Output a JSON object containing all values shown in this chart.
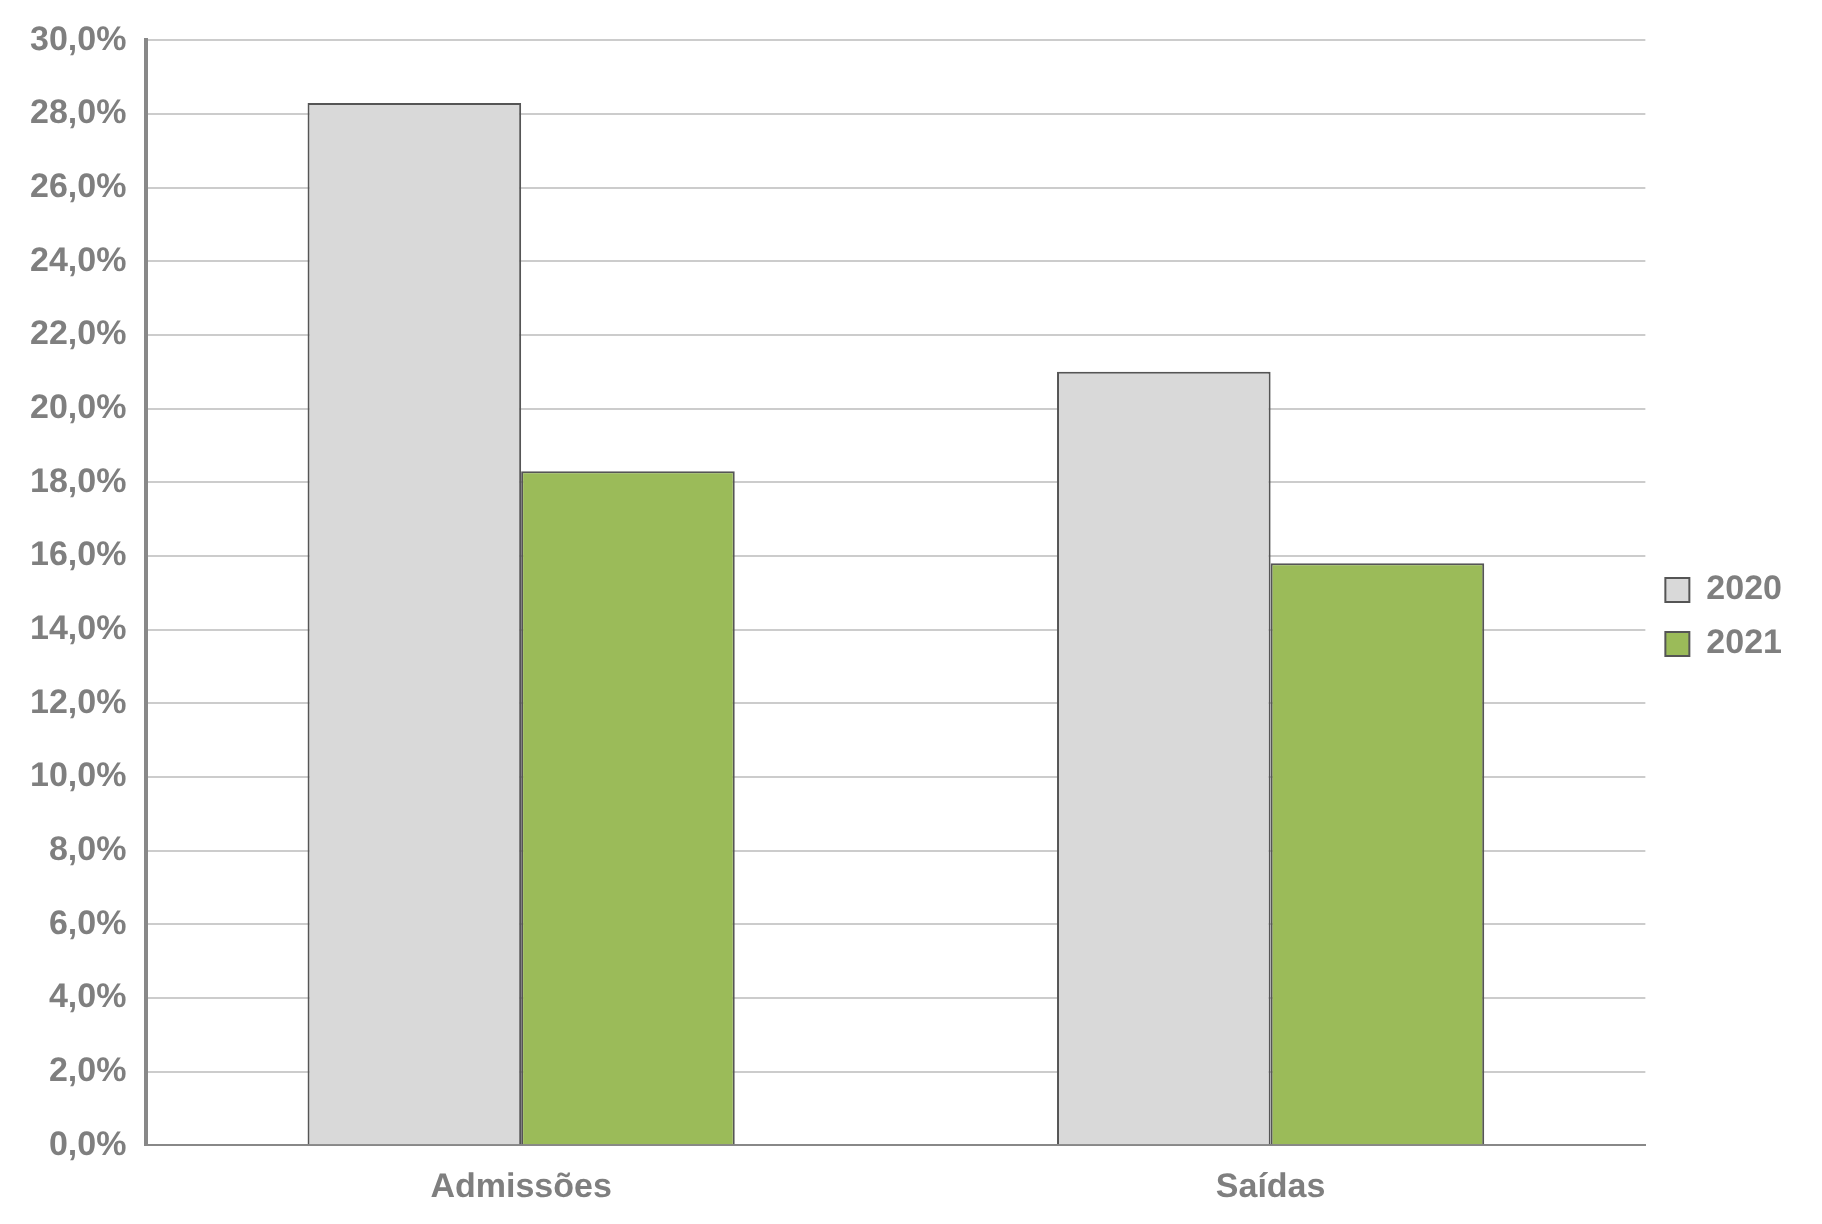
{
  "chart_data": {
    "type": "bar",
    "categories": [
      "Admissões",
      "Saídas"
    ],
    "series": [
      {
        "name": "2020",
        "color": "#d9d9d9",
        "values": [
          28.3,
          21.0
        ]
      },
      {
        "name": "2021",
        "color": "#9bbb59",
        "values": [
          18.3,
          15.8
        ]
      }
    ],
    "ylim": [
      0,
      30
    ],
    "yticks": [
      {
        "value": 0,
        "label": "0,0%"
      },
      {
        "value": 2,
        "label": "2,0%"
      },
      {
        "value": 4,
        "label": "4,0%"
      },
      {
        "value": 6,
        "label": "6,0%"
      },
      {
        "value": 8,
        "label": "8,0%"
      },
      {
        "value": 10,
        "label": "10,0%"
      },
      {
        "value": 12,
        "label": "12,0%"
      },
      {
        "value": 14,
        "label": "14,0%"
      },
      {
        "value": 16,
        "label": "16,0%"
      },
      {
        "value": 18,
        "label": "18,0%"
      },
      {
        "value": 20,
        "label": "20,0%"
      },
      {
        "value": 22,
        "label": "22,0%"
      },
      {
        "value": 24,
        "label": "24,0%"
      },
      {
        "value": 26,
        "label": "26,0%"
      },
      {
        "value": 28,
        "label": "28,0%"
      },
      {
        "value": 30,
        "label": "30,0%"
      }
    ],
    "grid": "y",
    "legend": "right"
  }
}
